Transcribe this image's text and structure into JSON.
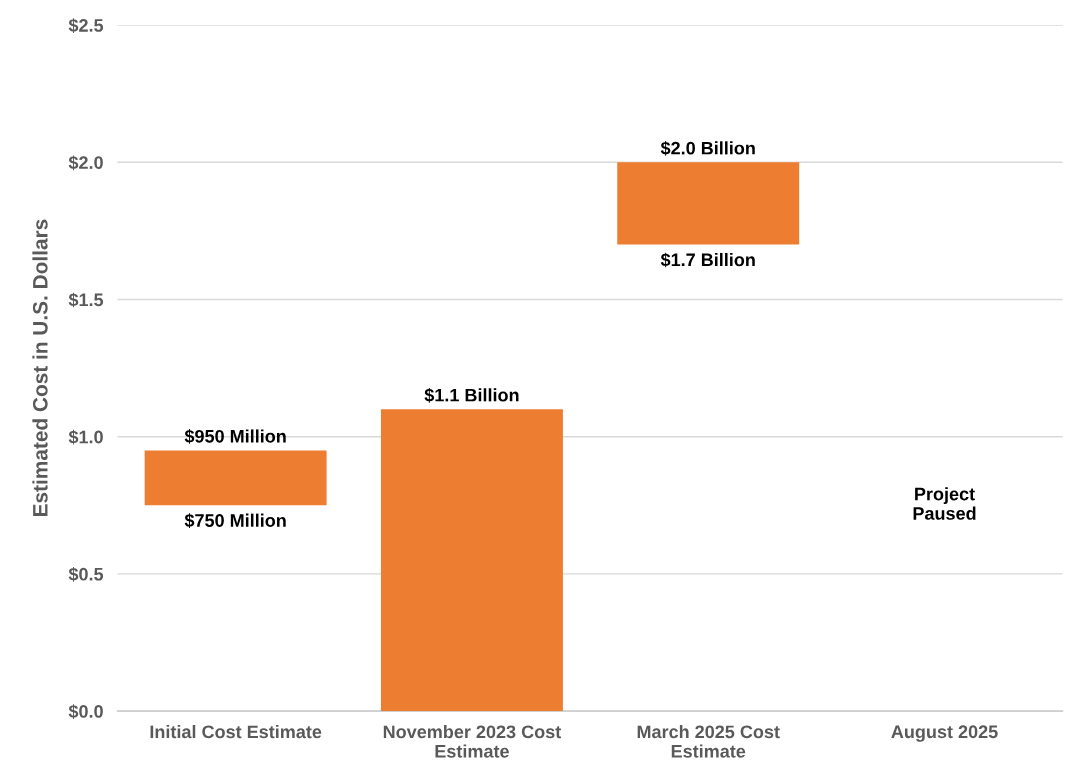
{
  "chart_data": {
    "type": "bar",
    "ylabel": "Estimated Cost in U.S. Dollars",
    "categories": [
      "Initial Cost Estimate",
      "November 2023 Cost\nEstimate",
      "March 2025 Cost\nEstimate",
      "August 2025"
    ],
    "values": [
      0.2,
      1.1,
      0.3,
      null
    ],
    "base": [
      0.75,
      0,
      1.7,
      null
    ],
    "color": "#ed7d31",
    "ylim": [
      0,
      2.5
    ],
    "yticks": [
      {
        "value": 0,
        "label": "$0.0"
      },
      {
        "value": 0.5,
        "label": "$0.5"
      },
      {
        "value": 1.0,
        "label": "$1.0"
      },
      {
        "value": 1.5,
        "label": "$1.5"
      },
      {
        "value": 2.0,
        "label": "$2.0"
      },
      {
        "value": 2.5,
        "label": "$2.5"
      }
    ],
    "grid": "y",
    "annotations": [
      {
        "text": "$950 Million",
        "x": "Initial Cost Estimate",
        "y": 0.95
      },
      {
        "text": "$750 Million",
        "x": "Initial Cost Estimate",
        "y": 0.75
      },
      {
        "text": "$1.1 Billion",
        "x": "November 2023 Cost\nEstimate",
        "y": 1.1
      },
      {
        "text": "$2.0 Billion",
        "x": "March 2025 Cost\nEstimate",
        "y": 2.0
      },
      {
        "text": "$1.7 Billion",
        "x": "March 2025 Cost\nEstimate",
        "y": 1.7
      },
      "Project\nPaused"
    ]
  }
}
